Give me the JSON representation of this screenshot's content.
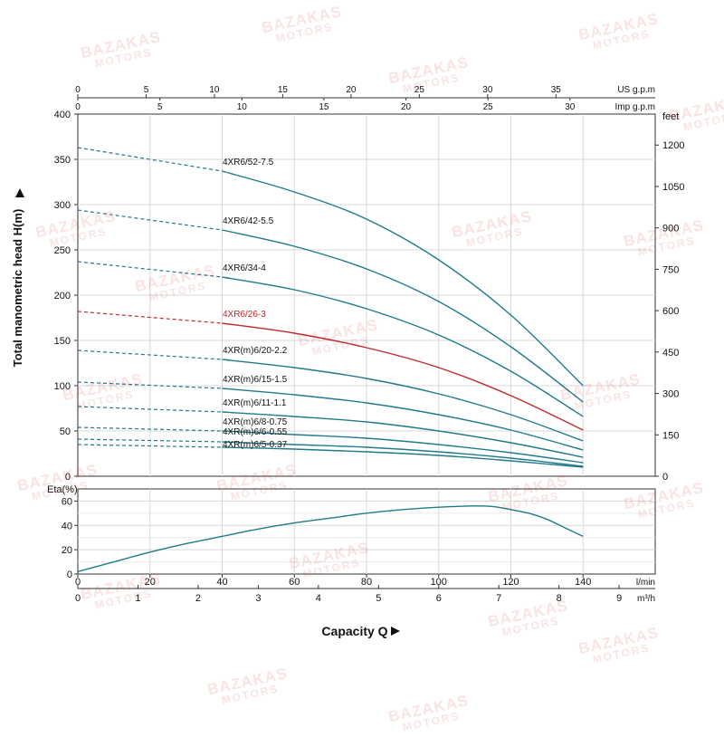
{
  "watermark": {
    "line1": "BAZAKAS",
    "line2": "MOTORS"
  },
  "colors": {
    "curve": "#1f7a8c",
    "highlight": "#c0282d",
    "grid": "#d8d8d8",
    "axis": "#333333"
  },
  "chart_data": [
    {
      "type": "line",
      "ylabel": "Total manometric head H(m)",
      "ylim": [
        0,
        400
      ],
      "yticks": [
        0,
        50,
        100,
        150,
        200,
        250,
        300,
        350,
        400
      ],
      "xlim": [
        0,
        160
      ],
      "top_axis_us": {
        "label": "US g.p.m",
        "ticks": [
          "0",
          "5",
          "10",
          "15",
          "20",
          "25",
          "30",
          "35"
        ],
        "values": [
          0,
          5,
          10,
          15,
          20,
          25,
          30,
          35
        ]
      },
      "top_axis_imp": {
        "label": "Imp g.p.m",
        "ticks": [
          "0",
          "5",
          "10",
          "15",
          "20",
          "25",
          "30"
        ],
        "values": [
          0,
          5,
          10,
          15,
          20,
          25,
          30
        ]
      },
      "right_axis_feet": {
        "label": "feet",
        "ticks": [
          "0",
          "150",
          "300",
          "450",
          "600",
          "750",
          "900",
          "1050",
          "1200"
        ],
        "values": [
          0,
          150,
          300,
          450,
          600,
          750,
          900,
          1050,
          1200
        ]
      },
      "dashed_segment": "0 to 40 l/min",
      "series": [
        {
          "name": "4XR6/52-7.5",
          "color": "#1f7a8c",
          "x": [
            0,
            40,
            60,
            80,
            100,
            120,
            140
          ],
          "y": [
            363,
            337,
            314,
            284,
            239,
            178,
            100
          ]
        },
        {
          "name": "4XR6/42-5.5",
          "color": "#1f7a8c",
          "x": [
            0,
            40,
            60,
            80,
            100,
            120,
            140
          ],
          "y": [
            294,
            272,
            254,
            229,
            193,
            143,
            82
          ]
        },
        {
          "name": "4XR6/34-4",
          "color": "#1f7a8c",
          "x": [
            0,
            40,
            60,
            80,
            100,
            120,
            140
          ],
          "y": [
            237,
            220,
            206,
            185,
            156,
            116,
            66
          ]
        },
        {
          "name": "4XR6/26-3",
          "color": "#c0282d",
          "x": [
            0,
            40,
            60,
            80,
            100,
            120,
            140
          ],
          "y": [
            182,
            169,
            158,
            142,
            120,
            89,
            51
          ]
        },
        {
          "name": "4XR(m)6/20-2.2",
          "color": "#1f7a8c",
          "x": [
            0,
            40,
            60,
            80,
            100,
            120,
            140
          ],
          "y": [
            139,
            129,
            120,
            108,
            91,
            68,
            39
          ]
        },
        {
          "name": "4XR(m)6/15-1.5",
          "color": "#1f7a8c",
          "x": [
            0,
            40,
            60,
            80,
            100,
            120,
            140
          ],
          "y": [
            104,
            97,
            90,
            81,
            68,
            51,
            29
          ]
        },
        {
          "name": "4XR(m)6/11-1.1",
          "color": "#1f7a8c",
          "x": [
            0,
            40,
            60,
            80,
            100,
            120,
            140
          ],
          "y": [
            77,
            71,
            66,
            60,
            50,
            37,
            21
          ]
        },
        {
          "name": "4XR(m)6/8-0.75",
          "color": "#1f7a8c",
          "x": [
            0,
            40,
            60,
            80,
            100,
            120,
            140
          ],
          "y": [
            54,
            50,
            46,
            42,
            35,
            26,
            15
          ]
        },
        {
          "name": "4XR(m)6/6-0.55",
          "color": "#1f7a8c",
          "x": [
            0,
            40,
            60,
            80,
            100,
            120,
            140
          ],
          "y": [
            41,
            38,
            35,
            32,
            27,
            20,
            11
          ]
        },
        {
          "name": "4XR(m)6/5-0.37",
          "color": "#1f7a8c",
          "x": [
            0,
            40,
            60,
            80,
            100,
            120,
            140
          ],
          "y": [
            35,
            32,
            30,
            27,
            23,
            17,
            10
          ]
        }
      ]
    },
    {
      "type": "line",
      "ylabel": "Eta(%)",
      "ylim": [
        0,
        70
      ],
      "yticks": [
        0,
        20,
        40,
        60
      ],
      "xlabel": "Capacity Q",
      "x_lmin": {
        "label": "l/min",
        "ticks": [
          "0",
          "20",
          "40",
          "60",
          "80",
          "100",
          "120",
          "140"
        ],
        "values": [
          0,
          20,
          40,
          60,
          80,
          100,
          120,
          140
        ]
      },
      "x_m3h": {
        "label": "m³/h",
        "ticks": [
          "0",
          "1",
          "2",
          "3",
          "4",
          "5",
          "6",
          "7",
          "8",
          "9"
        ],
        "values": [
          0,
          1,
          2,
          3,
          4,
          5,
          6,
          7,
          8,
          9
        ]
      },
      "series": [
        {
          "color": "#1f7a8c",
          "x": [
            0,
            10,
            20,
            30,
            40,
            50,
            60,
            70,
            80,
            90,
            100,
            110,
            115,
            120,
            125,
            130,
            135,
            140
          ],
          "y": [
            2,
            10,
            18,
            25,
            31,
            37,
            42,
            46,
            50,
            53,
            55,
            56,
            55.5,
            53,
            50,
            45,
            38,
            31
          ]
        }
      ]
    }
  ]
}
